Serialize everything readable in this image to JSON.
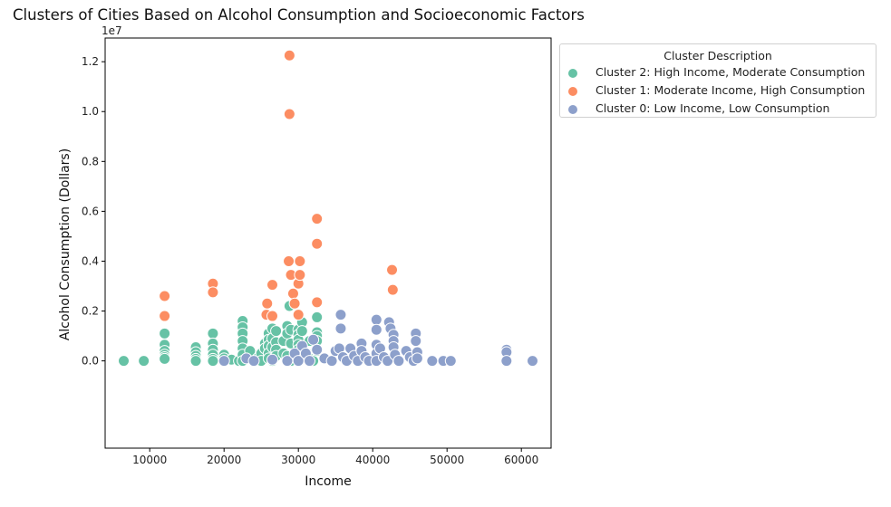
{
  "chart_data": {
    "type": "scatter",
    "title": "Clusters of Cities Based on Alcohol Consumption and Socioeconomic Factors",
    "xlabel": "Income",
    "ylabel": "Alcohol Consumption (Dollars)",
    "y_offset_label": "1e7",
    "xlim": [
      4000,
      64000
    ],
    "ylim": [
      -3500000,
      12950000
    ],
    "x_ticks": [
      10000,
      20000,
      30000,
      40000,
      50000,
      60000
    ],
    "x_tick_labels": [
      "10000",
      "20000",
      "30000",
      "40000",
      "50000",
      "60000"
    ],
    "y_ticks": [
      0,
      2000000,
      4000000,
      6000000,
      8000000,
      10000000,
      12000000
    ],
    "y_tick_labels": [
      "0.0",
      "0.2",
      "0.4",
      "0.6",
      "0.8",
      "1.0",
      "1.2"
    ],
    "grid": false,
    "legend_title": "Cluster Description",
    "legend_position": "outside-right",
    "series": [
      {
        "name": "Cluster 2: High Income, Moderate Consumption",
        "color": "#66c2a5",
        "points": [
          [
            6500,
            0
          ],
          [
            9200,
            0
          ],
          [
            12000,
            1100000
          ],
          [
            12000,
            650000
          ],
          [
            12000,
            400000
          ],
          [
            12000,
            250000
          ],
          [
            12000,
            150000
          ],
          [
            12000,
            80000
          ],
          [
            16200,
            550000
          ],
          [
            16200,
            350000
          ],
          [
            16200,
            200000
          ],
          [
            16200,
            80000
          ],
          [
            16200,
            0
          ],
          [
            18500,
            1100000
          ],
          [
            18500,
            700000
          ],
          [
            18500,
            450000
          ],
          [
            18500,
            250000
          ],
          [
            18500,
            80000
          ],
          [
            18500,
            0
          ],
          [
            20000,
            250000
          ],
          [
            20000,
            100000
          ],
          [
            21000,
            50000
          ],
          [
            22000,
            0
          ],
          [
            22500,
            1600000
          ],
          [
            22500,
            1350000
          ],
          [
            22500,
            1100000
          ],
          [
            22500,
            800000
          ],
          [
            22500,
            500000
          ],
          [
            22500,
            250000
          ],
          [
            22500,
            0
          ],
          [
            23500,
            400000
          ],
          [
            24500,
            100000
          ],
          [
            25000,
            300000
          ],
          [
            25000,
            0
          ],
          [
            25500,
            700000
          ],
          [
            25500,
            500000
          ],
          [
            26000,
            1100000
          ],
          [
            26000,
            850000
          ],
          [
            26000,
            600000
          ],
          [
            26000,
            300000
          ],
          [
            26000,
            100000
          ],
          [
            26500,
            1300000
          ],
          [
            26500,
            900000
          ],
          [
            26500,
            550000
          ],
          [
            26500,
            0
          ],
          [
            27000,
            1200000
          ],
          [
            27000,
            750000
          ],
          [
            27000,
            450000
          ],
          [
            27000,
            200000
          ],
          [
            28000,
            800000
          ],
          [
            28000,
            300000
          ],
          [
            28500,
            1400000
          ],
          [
            28500,
            1100000
          ],
          [
            28500,
            200000
          ],
          [
            28800,
            2200000
          ],
          [
            29000,
            1250000
          ],
          [
            29000,
            700000
          ],
          [
            29000,
            0
          ],
          [
            30000,
            1250000
          ],
          [
            30000,
            1050000
          ],
          [
            30000,
            850000
          ],
          [
            30000,
            650000
          ],
          [
            30000,
            450000
          ],
          [
            30000,
            200000
          ],
          [
            30500,
            1550000
          ],
          [
            30500,
            1200000
          ],
          [
            31500,
            800000
          ],
          [
            31500,
            250000
          ],
          [
            32000,
            0
          ],
          [
            32500,
            1750000
          ],
          [
            32500,
            1150000
          ],
          [
            32500,
            1000000
          ],
          [
            32500,
            800000
          ],
          [
            32500,
            400000
          ]
        ]
      },
      {
        "name": "Cluster 1: Moderate Income, High Consumption",
        "color": "#fc8d62",
        "points": [
          [
            12000,
            2600000
          ],
          [
            12000,
            1800000
          ],
          [
            18500,
            3100000
          ],
          [
            18500,
            2750000
          ],
          [
            25700,
            1850000
          ],
          [
            25800,
            2300000
          ],
          [
            26500,
            3050000
          ],
          [
            26500,
            1800000
          ],
          [
            28700,
            4000000
          ],
          [
            28800,
            12250000
          ],
          [
            28800,
            9900000
          ],
          [
            29000,
            3450000
          ],
          [
            29300,
            2700000
          ],
          [
            29500,
            2300000
          ],
          [
            30000,
            3100000
          ],
          [
            30000,
            1850000
          ],
          [
            30200,
            4000000
          ],
          [
            30200,
            3450000
          ],
          [
            32500,
            5700000
          ],
          [
            32500,
            4700000
          ],
          [
            32500,
            2350000
          ],
          [
            42600,
            3650000
          ],
          [
            42700,
            2850000
          ]
        ]
      },
      {
        "name": "Cluster 0: Low Income, Low Consumption",
        "color": "#8da0cb",
        "points": [
          [
            20000,
            0
          ],
          [
            23000,
            100000
          ],
          [
            24000,
            0
          ],
          [
            26500,
            50000
          ],
          [
            28500,
            0
          ],
          [
            29500,
            300000
          ],
          [
            30000,
            0
          ],
          [
            30500,
            600000
          ],
          [
            31000,
            300000
          ],
          [
            31500,
            0
          ],
          [
            32000,
            850000
          ],
          [
            32500,
            450000
          ],
          [
            33500,
            100000
          ],
          [
            34500,
            0
          ],
          [
            35000,
            400000
          ],
          [
            35500,
            500000
          ],
          [
            35700,
            1850000
          ],
          [
            35700,
            1300000
          ],
          [
            36000,
            150000
          ],
          [
            36500,
            0
          ],
          [
            37000,
            500000
          ],
          [
            37500,
            200000
          ],
          [
            38000,
            0
          ],
          [
            38500,
            700000
          ],
          [
            38500,
            400000
          ],
          [
            39000,
            150000
          ],
          [
            39500,
            0
          ],
          [
            40500,
            1650000
          ],
          [
            40500,
            1250000
          ],
          [
            40500,
            650000
          ],
          [
            40500,
            300000
          ],
          [
            40500,
            0
          ],
          [
            41000,
            500000
          ],
          [
            41500,
            150000
          ],
          [
            42000,
            0
          ],
          [
            42200,
            1550000
          ],
          [
            42400,
            1300000
          ],
          [
            42800,
            1050000
          ],
          [
            42800,
            800000
          ],
          [
            42800,
            550000
          ],
          [
            43000,
            250000
          ],
          [
            43500,
            0
          ],
          [
            44500,
            400000
          ],
          [
            45000,
            150000
          ],
          [
            45500,
            0
          ],
          [
            45800,
            1100000
          ],
          [
            45800,
            800000
          ],
          [
            46000,
            350000
          ],
          [
            46000,
            100000
          ],
          [
            48000,
            0
          ],
          [
            49500,
            0
          ],
          [
            50500,
            0
          ],
          [
            58000,
            450000
          ],
          [
            58000,
            350000
          ],
          [
            58000,
            0
          ],
          [
            61500,
            0
          ]
        ]
      }
    ]
  }
}
